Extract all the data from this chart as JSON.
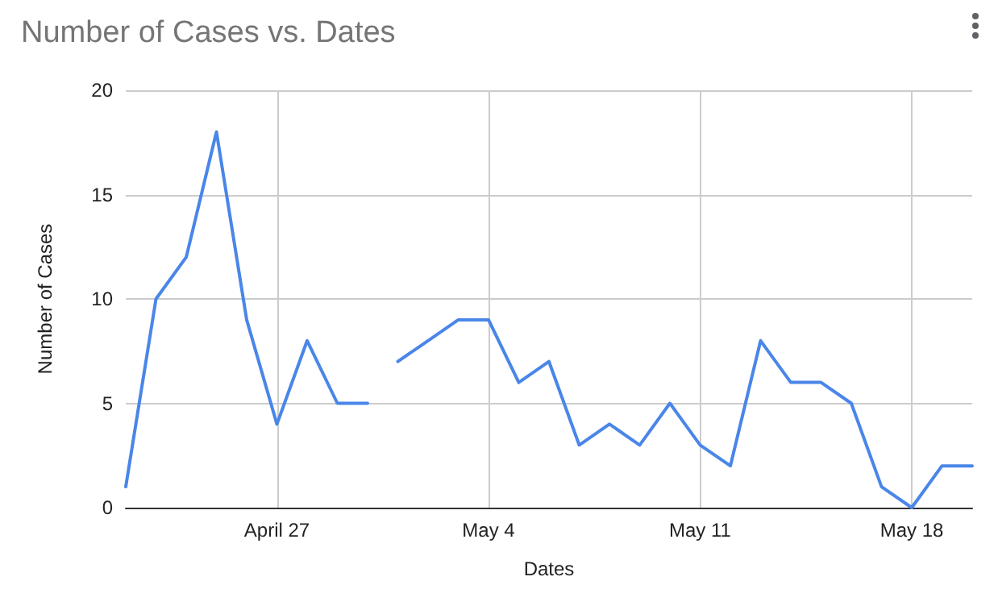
{
  "chart_data": {
    "type": "line",
    "title": "Number of Cases vs. Dates",
    "xlabel": "Dates",
    "ylabel": "Number of Cases",
    "x": [
      "--04-22",
      "--04-23",
      "--04-24",
      "--04-25",
      "--04-26",
      "--04-27",
      "--04-28",
      "--04-29",
      "--04-30",
      "--04-30T12:00",
      "--05-01",
      "--05-02",
      "--05-03",
      "--05-04",
      "--05-05",
      "--05-06",
      "--05-07",
      "--05-08",
      "--05-09",
      "--05-10",
      "--05-11",
      "--05-12",
      "--05-13",
      "--05-14",
      "--05-15",
      "--05-16",
      "--05-17",
      "--05-18",
      "--05-19",
      "--05-20"
    ],
    "series": [
      {
        "color": "#4a86e8",
        "values": [
          1,
          10,
          12,
          18,
          9,
          4,
          8,
          5,
          5,
          null,
          7,
          8,
          9,
          9,
          6,
          7,
          3,
          4,
          3,
          5,
          3,
          2,
          8,
          6,
          6,
          5,
          1,
          0,
          2,
          2
        ]
      }
    ],
    "xlim": [
      "--04-22",
      "--05-20"
    ],
    "xticks": [
      {
        "value": "--04-27",
        "label": "April 27"
      },
      {
        "value": "--05-04",
        "label": "May 4"
      },
      {
        "value": "--05-11",
        "label": "May 11"
      },
      {
        "value": "--05-18",
        "label": "May 18"
      }
    ],
    "ylim": [
      0,
      20
    ],
    "yticks": [
      0,
      5,
      10,
      15,
      20
    ],
    "grid": true,
    "marker": "none",
    "line_style": "solid"
  }
}
